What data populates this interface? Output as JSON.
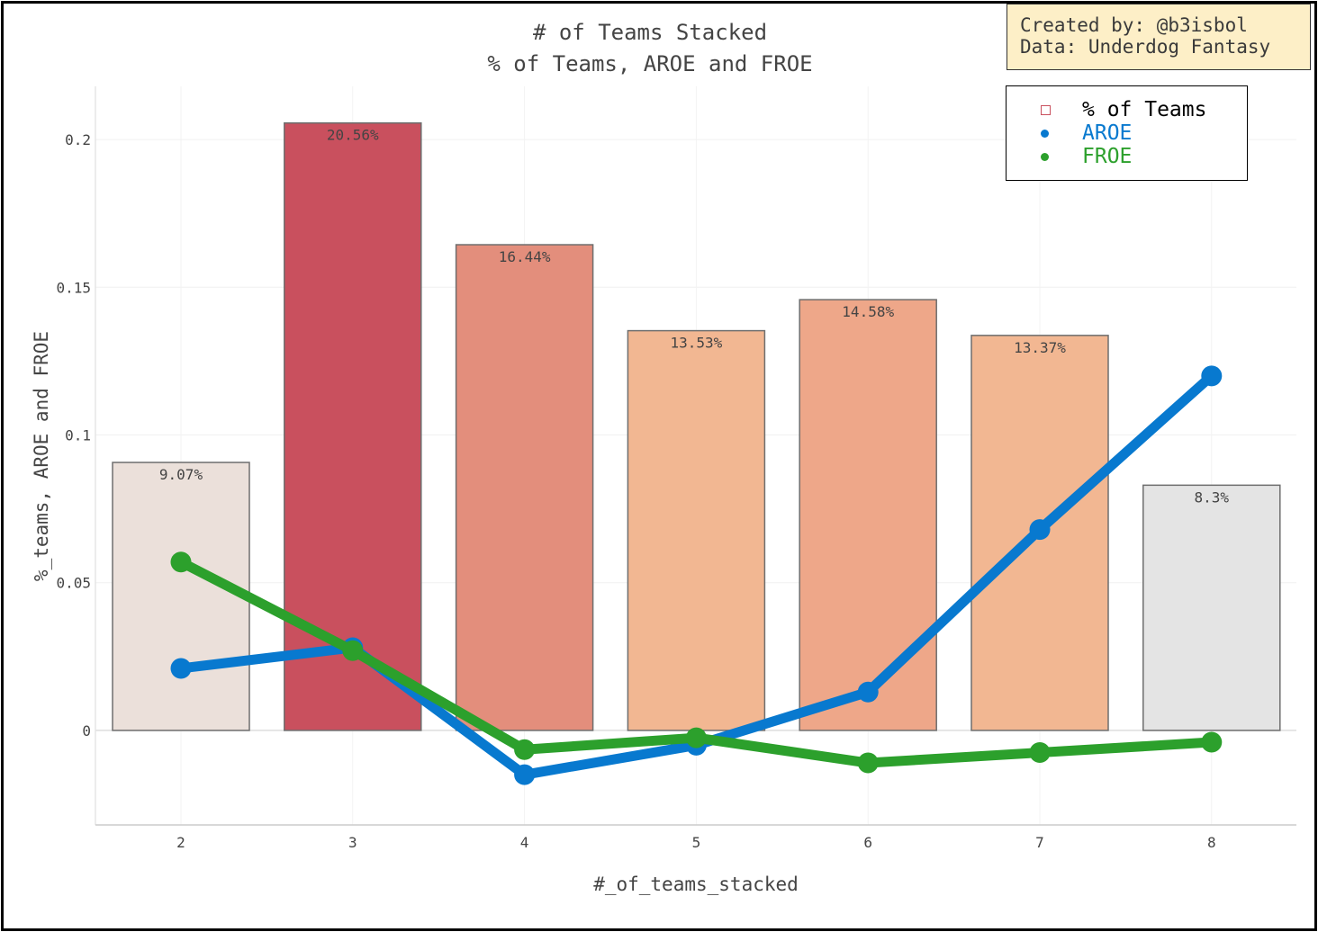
{
  "chart_data": {
    "type": "bar",
    "title": "# of Teams Stacked",
    "subtitle": "% of Teams, AROE and FROE",
    "xlabel": "#_of_teams_stacked",
    "ylabel": "%_teams, AROE and FROE",
    "categories": [
      "2",
      "3",
      "4",
      "5",
      "6",
      "7",
      "8"
    ],
    "ylim": [
      -0.032,
      0.218
    ],
    "yticks": [
      {
        "value": 0,
        "label": "0"
      },
      {
        "value": 0.05,
        "label": "0.05"
      },
      {
        "value": 0.1,
        "label": "0.1"
      },
      {
        "value": 0.15,
        "label": "0.15"
      },
      {
        "value": 0.2,
        "label": "0.2"
      }
    ],
    "grid": true,
    "bars": {
      "name": "% of Teams",
      "values": [
        0.0907,
        0.2056,
        0.1644,
        0.1353,
        0.1458,
        0.1337,
        0.083
      ],
      "labels": [
        "9.07%",
        "20.56%",
        "16.44%",
        "13.53%",
        "14.58%",
        "13.37%",
        "8.3%"
      ],
      "colors": [
        "#ebe0da",
        "#c9505e",
        "#e38e7c",
        "#f2b792",
        "#eea789",
        "#f2b792",
        "#e4e4e4"
      ]
    },
    "series": [
      {
        "name": "AROE",
        "color": "#0879cf",
        "values": [
          0.021,
          0.028,
          -0.015,
          -0.005,
          0.013,
          0.068,
          0.12
        ]
      },
      {
        "name": "FROE",
        "color": "#2ca02c",
        "values": [
          0.057,
          0.027,
          -0.0065,
          -0.0025,
          -0.011,
          -0.0075,
          -0.004
        ]
      }
    ],
    "legend": {
      "position": "top-right",
      "items": [
        {
          "label": "% of Teams",
          "color": "#000000",
          "marker_color": "#c9505e"
        },
        {
          "label": "AROE",
          "color": "#0879cf",
          "marker_color": "#0879cf"
        },
        {
          "label": "FROE",
          "color": "#2ca02c",
          "marker_color": "#2ca02c"
        }
      ]
    }
  },
  "annotation": {
    "created_by": "Created by: @b3isbol",
    "data_source": "Data: Underdog Fantasy"
  }
}
